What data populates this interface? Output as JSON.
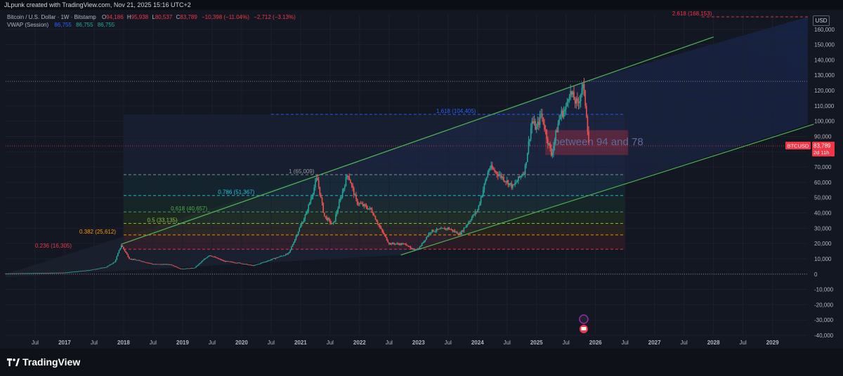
{
  "header": {
    "created_by": "JLpunk created with TradingView.com, Nov 21, 2025 15:16 UTC+2",
    "symbol": "Bitcoin / U.S. Dollar · 1W · Bitstamp",
    "ohlc": {
      "open_label": "O",
      "open": "94,186",
      "high_label": "H",
      "high": "95,938",
      "low_label": "L",
      "low": "80,537",
      "close_label": "C",
      "close": "83,789",
      "change": "−10,398 (−11.04%)",
      "change2": "−2,712 (−3.13%)"
    },
    "vwap_label": "VWAP (Session)",
    "vwap_values": [
      "86,755",
      "86,755",
      "86,755"
    ]
  },
  "currency": "USD",
  "brand": "TradingView",
  "colors": {
    "up": "#26a69a",
    "down": "#ef5350",
    "channel": "#4caf50",
    "price_label_bg": "#f23645"
  },
  "chart_data": {
    "type": "candlestick",
    "symbol": "BTCUSD",
    "timeframe": "1W",
    "ylim": [
      -40000,
      170000
    ],
    "xlim": [
      2016.0,
      2029.6
    ],
    "y_ticks": [
      "160,000",
      "150,000",
      "140,000",
      "130,000",
      "120,000",
      "110,000",
      "100,000",
      "90,000",
      "80,000",
      "70,000",
      "60,000",
      "50,000",
      "40,000",
      "30,000",
      "20,000",
      "10,000",
      "0",
      "-10,000",
      "-20,000",
      "-30,000",
      "-40,000"
    ],
    "y_tick_values": [
      160000,
      150000,
      140000,
      130000,
      120000,
      110000,
      100000,
      90000,
      80000,
      70000,
      60000,
      50000,
      40000,
      30000,
      20000,
      10000,
      0,
      -10000,
      -20000,
      -30000,
      -40000
    ],
    "x_ticks": [
      {
        "label": "Jul",
        "t": 2016.5
      },
      {
        "label": "2017",
        "t": 2017.0
      },
      {
        "label": "Jul",
        "t": 2017.5
      },
      {
        "label": "2018",
        "t": 2018.0
      },
      {
        "label": "Jul",
        "t": 2018.5
      },
      {
        "label": "2019",
        "t": 2019.0
      },
      {
        "label": "Jul",
        "t": 2019.5
      },
      {
        "label": "2020",
        "t": 2020.0
      },
      {
        "label": "Jul",
        "t": 2020.5
      },
      {
        "label": "2021",
        "t": 2021.0
      },
      {
        "label": "Jul",
        "t": 2021.5
      },
      {
        "label": "2022",
        "t": 2022.0
      },
      {
        "label": "Jul",
        "t": 2022.5
      },
      {
        "label": "2023",
        "t": 2023.0
      },
      {
        "label": "Jul",
        "t": 2023.5
      },
      {
        "label": "2024",
        "t": 2024.0
      },
      {
        "label": "Jul",
        "t": 2024.5
      },
      {
        "label": "2025",
        "t": 2025.0
      },
      {
        "label": "Jul",
        "t": 2025.5
      },
      {
        "label": "2026",
        "t": 2026.0
      },
      {
        "label": "Jul",
        "t": 2026.5
      },
      {
        "label": "2027",
        "t": 2027.0
      },
      {
        "label": "Jul",
        "t": 2027.5
      },
      {
        "label": "2028",
        "t": 2028.0
      },
      {
        "label": "Jul",
        "t": 2028.5
      },
      {
        "label": "2029",
        "t": 2029.0
      }
    ],
    "price_path": [
      [
        2016.0,
        430
      ],
      [
        2016.5,
        650
      ],
      [
        2017.0,
        1000
      ],
      [
        2017.4,
        2500
      ],
      [
        2017.7,
        4500
      ],
      [
        2017.85,
        8000
      ],
      [
        2017.96,
        19000
      ],
      [
        2018.1,
        10000
      ],
      [
        2018.3,
        8500
      ],
      [
        2018.5,
        6500
      ],
      [
        2018.8,
        6300
      ],
      [
        2018.96,
        3400
      ],
      [
        2019.2,
        4000
      ],
      [
        2019.45,
        12500
      ],
      [
        2019.7,
        8500
      ],
      [
        2019.97,
        7200
      ],
      [
        2020.2,
        5500
      ],
      [
        2020.5,
        9500
      ],
      [
        2020.8,
        13500
      ],
      [
        2020.97,
        29000
      ],
      [
        2021.1,
        40000
      ],
      [
        2021.28,
        63000
      ],
      [
        2021.4,
        38000
      ],
      [
        2021.55,
        32000
      ],
      [
        2021.8,
        66000
      ],
      [
        2021.95,
        47000
      ],
      [
        2022.2,
        42000
      ],
      [
        2022.35,
        30000
      ],
      [
        2022.5,
        20000
      ],
      [
        2022.8,
        19500
      ],
      [
        2022.88,
        16000
      ],
      [
        2023.0,
        16500
      ],
      [
        2023.2,
        28000
      ],
      [
        2023.5,
        30000
      ],
      [
        2023.7,
        26000
      ],
      [
        2023.9,
        37000
      ],
      [
        2024.0,
        42000
      ],
      [
        2024.2,
        70000
      ],
      [
        2024.4,
        64000
      ],
      [
        2024.6,
        57000
      ],
      [
        2024.8,
        68000
      ],
      [
        2024.92,
        100000
      ],
      [
        2025.0,
        95000
      ],
      [
        2025.08,
        105000
      ],
      [
        2025.25,
        78000
      ],
      [
        2025.4,
        104000
      ],
      [
        2025.5,
        108000
      ],
      [
        2025.55,
        120000
      ],
      [
        2025.7,
        110000
      ],
      [
        2025.78,
        124500
      ],
      [
        2025.84,
        108000
      ],
      [
        2025.89,
        83789
      ]
    ],
    "channel_upper": [
      [
        2017.96,
        19500
      ],
      [
        2028.0,
        155000
      ]
    ],
    "channel_lower": [
      [
        2022.7,
        12500
      ],
      [
        2029.7,
        98000
      ]
    ],
    "fib_levels": [
      {
        "label": "0.236 (16,305)",
        "value": 16305,
        "color": "#f23645"
      },
      {
        "label": "0.382 (25,612)",
        "value": 25612,
        "color": "#ff9800"
      },
      {
        "label": "0.5 (33,135)",
        "value": 33135,
        "color": "#8bc34a"
      },
      {
        "label": "0.618 (40,657)",
        "value": 40657,
        "color": "#4caf50"
      },
      {
        "label": "0.786 (51,367)",
        "value": 51367,
        "color": "#26c6da"
      },
      {
        "label": "1 (65,009)",
        "value": 65009,
        "color": "#9598a1"
      },
      {
        "label": "1.618 (104,405)",
        "value": 104405,
        "color": "#2962ff"
      },
      {
        "label": "2.618 (168,153)",
        "value": 168153,
        "color": "#f23645"
      }
    ],
    "annotation": "between 94 and 78",
    "annotation_range": [
      78000,
      94000
    ],
    "last_price": {
      "symbol": "BTCUSD",
      "value": "83,789",
      "countdown": "2d 11h",
      "numeric": 83789
    },
    "ath_level": 126000
  }
}
